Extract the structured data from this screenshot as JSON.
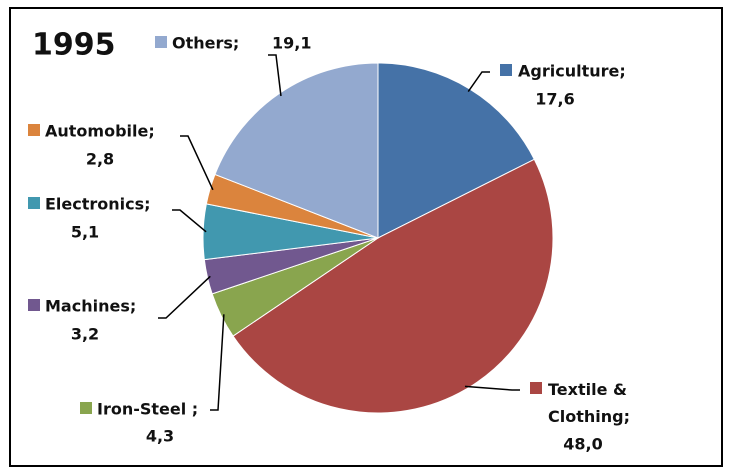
{
  "chart_data": {
    "type": "pie",
    "title": "1995",
    "categories": [
      "Agriculture;",
      "Textile & Clothing;",
      "Iron-Steel ;",
      "Machines;",
      "Electronics;",
      "Automobile;",
      "Others;"
    ],
    "values": [
      17.6,
      48.0,
      4.3,
      3.2,
      5.1,
      2.8,
      19.1
    ],
    "value_labels": [
      "17,6",
      "48,0",
      "4,3",
      "3,2",
      "5,1",
      "2,8",
      "19,1"
    ],
    "colors": [
      "#4572a7",
      "#aa4643",
      "#89a54e",
      "#71588f",
      "#4198af",
      "#db843d",
      "#93a9cf"
    ]
  }
}
